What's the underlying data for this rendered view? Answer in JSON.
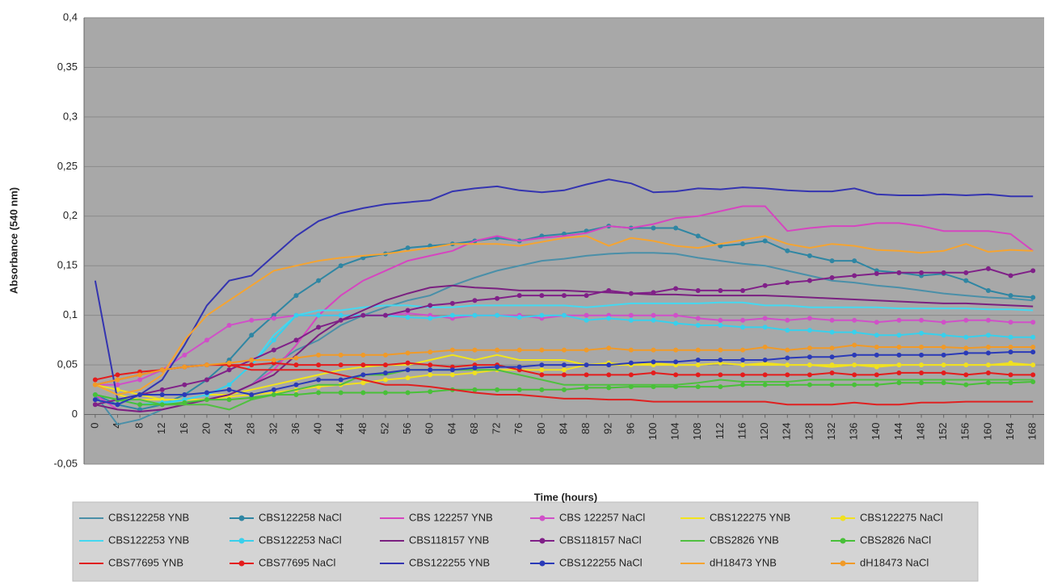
{
  "chart_data": {
    "type": "line",
    "xlabel": "Time (hours)",
    "ylabel": "Absorbance (540 nm)",
    "x": [
      0,
      4,
      8,
      12,
      16,
      20,
      24,
      28,
      32,
      36,
      40,
      44,
      48,
      52,
      56,
      60,
      64,
      68,
      72,
      76,
      80,
      84,
      88,
      92,
      96,
      100,
      104,
      108,
      112,
      116,
      120,
      124,
      128,
      132,
      136,
      140,
      144,
      148,
      152,
      156,
      160,
      164,
      168
    ],
    "xlim": [
      -2,
      170
    ],
    "xticks": [
      0,
      4,
      8,
      12,
      16,
      20,
      24,
      28,
      32,
      36,
      40,
      44,
      48,
      52,
      56,
      60,
      64,
      68,
      72,
      76,
      80,
      84,
      88,
      92,
      96,
      100,
      104,
      108,
      112,
      116,
      120,
      124,
      128,
      132,
      136,
      140,
      144,
      148,
      152,
      156,
      160,
      164,
      168
    ],
    "ylim": [
      -0.05,
      0.4
    ],
    "yticks": [
      {
        "value": -0.05,
        "label": "-0,05"
      },
      0,
      {
        "value": 0.05,
        "label": "0,05"
      },
      {
        "value": 0.1,
        "label": "0,1"
      },
      {
        "value": 0.15,
        "label": "0,15"
      },
      {
        "value": 0.2,
        "label": "0,2"
      },
      {
        "value": 0.25,
        "label": "0,25"
      },
      {
        "value": 0.3,
        "label": "0,3"
      },
      {
        "value": 0.35,
        "label": "0,35"
      },
      {
        "value": 0.4,
        "label": "0,4"
      }
    ],
    "grid": true,
    "series": [
      {
        "name": "CBS122258 YNB",
        "color": "#4a8fa8",
        "marker": false,
        "values": [
          0.02,
          -0.01,
          -0.005,
          0.005,
          0.01,
          0.015,
          0.02,
          0.03,
          0.05,
          0.065,
          0.075,
          0.09,
          0.1,
          0.108,
          0.115,
          0.12,
          0.13,
          0.138,
          0.145,
          0.15,
          0.155,
          0.157,
          0.16,
          0.162,
          0.163,
          0.163,
          0.162,
          0.158,
          0.155,
          0.152,
          0.15,
          0.145,
          0.14,
          0.135,
          0.133,
          0.13,
          0.128,
          0.125,
          0.122,
          0.12,
          0.118,
          0.117,
          0.115
        ]
      },
      {
        "name": "CBS122258 NaCl",
        "color": "#2f86a3",
        "marker": true,
        "values": [
          0.02,
          0.01,
          0.005,
          0.01,
          0.02,
          0.035,
          0.055,
          0.08,
          0.1,
          0.12,
          0.135,
          0.15,
          0.158,
          0.162,
          0.168,
          0.17,
          0.172,
          0.175,
          0.178,
          0.175,
          0.18,
          0.182,
          0.185,
          0.19,
          0.188,
          0.188,
          0.188,
          0.18,
          0.17,
          0.172,
          0.175,
          0.165,
          0.16,
          0.155,
          0.155,
          0.145,
          0.143,
          0.14,
          0.142,
          0.135,
          0.125,
          0.12,
          0.118
        ]
      },
      {
        "name": "CBS 122257 YNB",
        "color": "#d645c0",
        "marker": false,
        "values": [
          0.02,
          0.005,
          0.003,
          0.005,
          0.01,
          0.015,
          0.02,
          0.03,
          0.045,
          0.07,
          0.1,
          0.12,
          0.135,
          0.145,
          0.155,
          0.16,
          0.165,
          0.175,
          0.18,
          0.175,
          0.178,
          0.18,
          0.183,
          0.19,
          0.188,
          0.192,
          0.198,
          0.2,
          0.205,
          0.21,
          0.21,
          0.185,
          0.188,
          0.19,
          0.19,
          0.193,
          0.193,
          0.19,
          0.185,
          0.185,
          0.185,
          0.182,
          0.165
        ]
      },
      {
        "name": "CBS 122257 NaCl",
        "color": "#d050c8",
        "marker": true,
        "values": [
          0.03,
          0.03,
          0.035,
          0.045,
          0.06,
          0.075,
          0.09,
          0.095,
          0.097,
          0.1,
          0.1,
          0.1,
          0.1,
          0.1,
          0.102,
          0.1,
          0.097,
          0.1,
          0.1,
          0.1,
          0.097,
          0.1,
          0.1,
          0.1,
          0.1,
          0.1,
          0.1,
          0.097,
          0.095,
          0.095,
          0.097,
          0.095,
          0.097,
          0.095,
          0.095,
          0.093,
          0.095,
          0.095,
          0.093,
          0.095,
          0.095,
          0.093,
          0.093
        ]
      },
      {
        "name": "CBS122275 YNB",
        "color": "#f2e41c",
        "marker": false,
        "values": [
          0.03,
          0.02,
          0.015,
          0.015,
          0.015,
          0.02,
          0.02,
          0.025,
          0.03,
          0.035,
          0.04,
          0.045,
          0.048,
          0.05,
          0.05,
          0.055,
          0.06,
          0.055,
          0.06,
          0.055,
          0.055,
          0.055,
          0.05,
          0.05,
          0.05,
          0.052,
          0.05,
          0.05,
          0.052,
          0.05,
          0.05,
          0.05,
          0.05,
          0.048,
          0.05,
          0.05,
          0.05,
          0.05,
          0.05,
          0.05,
          0.05,
          0.05,
          0.05
        ]
      },
      {
        "name": "CBS122275 NaCl",
        "color": "#f0e020",
        "marker": true,
        "values": [
          0.03,
          0.025,
          0.02,
          0.015,
          0.015,
          0.015,
          0.018,
          0.02,
          0.022,
          0.025,
          0.028,
          0.03,
          0.032,
          0.035,
          0.037,
          0.04,
          0.04,
          0.042,
          0.045,
          0.045,
          0.045,
          0.045,
          0.05,
          0.052,
          0.05,
          0.05,
          0.05,
          0.05,
          0.052,
          0.05,
          0.052,
          0.05,
          0.05,
          0.05,
          0.05,
          0.048,
          0.05,
          0.05,
          0.05,
          0.05,
          0.05,
          0.052,
          0.05
        ]
      },
      {
        "name": "CBS122253 YNB",
        "color": "#44d8f0",
        "marker": false,
        "values": [
          0.02,
          0.015,
          0.01,
          0.01,
          0.015,
          0.02,
          0.03,
          0.05,
          0.08,
          0.1,
          0.105,
          0.105,
          0.108,
          0.11,
          0.11,
          0.108,
          0.108,
          0.11,
          0.11,
          0.11,
          0.11,
          0.11,
          0.108,
          0.11,
          0.112,
          0.112,
          0.112,
          0.112,
          0.113,
          0.113,
          0.11,
          0.11,
          0.108,
          0.108,
          0.108,
          0.108,
          0.107,
          0.107,
          0.107,
          0.107,
          0.106,
          0.106,
          0.105
        ]
      },
      {
        "name": "CBS122253 NaCl",
        "color": "#38d0ec",
        "marker": true,
        "values": [
          0.02,
          0.015,
          0.01,
          0.012,
          0.015,
          0.02,
          0.03,
          0.05,
          0.075,
          0.1,
          0.1,
          0.1,
          0.1,
          0.1,
          0.098,
          0.097,
          0.1,
          0.1,
          0.1,
          0.098,
          0.1,
          0.1,
          0.095,
          0.097,
          0.095,
          0.095,
          0.092,
          0.09,
          0.09,
          0.088,
          0.088,
          0.085,
          0.085,
          0.083,
          0.083,
          0.08,
          0.08,
          0.082,
          0.08,
          0.078,
          0.08,
          0.078,
          0.078
        ]
      },
      {
        "name": "CBS118157 YNB",
        "color": "#7a2080",
        "marker": false,
        "values": [
          0.01,
          0.005,
          0.003,
          0.005,
          0.01,
          0.015,
          0.02,
          0.03,
          0.04,
          0.06,
          0.08,
          0.095,
          0.105,
          0.115,
          0.122,
          0.128,
          0.13,
          0.128,
          0.127,
          0.125,
          0.125,
          0.125,
          0.124,
          0.123,
          0.122,
          0.121,
          0.121,
          0.12,
          0.12,
          0.12,
          0.12,
          0.119,
          0.118,
          0.117,
          0.116,
          0.115,
          0.114,
          0.113,
          0.112,
          0.112,
          0.111,
          0.11,
          0.109
        ]
      },
      {
        "name": "CBS118157 NaCl",
        "color": "#802088",
        "marker": true,
        "values": [
          0.01,
          0.015,
          0.02,
          0.025,
          0.03,
          0.035,
          0.045,
          0.055,
          0.065,
          0.075,
          0.088,
          0.095,
          0.1,
          0.1,
          0.105,
          0.11,
          0.112,
          0.115,
          0.117,
          0.12,
          0.12,
          0.12,
          0.12,
          0.125,
          0.122,
          0.123,
          0.127,
          0.125,
          0.125,
          0.125,
          0.13,
          0.133,
          0.135,
          0.138,
          0.14,
          0.142,
          0.143,
          0.143,
          0.143,
          0.143,
          0.147,
          0.14,
          0.145
        ]
      },
      {
        "name": "CBS2826 YNB",
        "color": "#50c040",
        "marker": false,
        "values": [
          0.02,
          0.015,
          0.015,
          0.01,
          0.01,
          0.01,
          0.005,
          0.015,
          0.02,
          0.025,
          0.03,
          0.03,
          0.04,
          0.04,
          0.045,
          0.045,
          0.045,
          0.045,
          0.045,
          0.04,
          0.035,
          0.03,
          0.03,
          0.03,
          0.03,
          0.03,
          0.03,
          0.032,
          0.035,
          0.033,
          0.033,
          0.033,
          0.035,
          0.035,
          0.035,
          0.035,
          0.035,
          0.035,
          0.035,
          0.035,
          0.035,
          0.035,
          0.035
        ]
      },
      {
        "name": "CBS2826 NaCl",
        "color": "#48c038",
        "marker": true,
        "values": [
          0.02,
          0.015,
          0.01,
          0.01,
          0.012,
          0.015,
          0.015,
          0.017,
          0.02,
          0.02,
          0.022,
          0.022,
          0.022,
          0.022,
          0.022,
          0.023,
          0.025,
          0.025,
          0.025,
          0.025,
          0.025,
          0.025,
          0.027,
          0.027,
          0.028,
          0.028,
          0.028,
          0.028,
          0.028,
          0.03,
          0.03,
          0.03,
          0.03,
          0.03,
          0.03,
          0.03,
          0.032,
          0.032,
          0.032,
          0.03,
          0.032,
          0.032,
          0.033
        ]
      },
      {
        "name": "CBS77695 YNB",
        "color": "#e02020",
        "marker": false,
        "values": [
          0.03,
          0.035,
          0.04,
          0.045,
          0.048,
          0.05,
          0.05,
          0.045,
          0.045,
          0.045,
          0.045,
          0.04,
          0.035,
          0.03,
          0.03,
          0.028,
          0.025,
          0.022,
          0.02,
          0.02,
          0.018,
          0.016,
          0.016,
          0.015,
          0.015,
          0.013,
          0.013,
          0.013,
          0.013,
          0.013,
          0.013,
          0.01,
          0.01,
          0.01,
          0.012,
          0.01,
          0.01,
          0.012,
          0.012,
          0.013,
          0.013,
          0.013,
          0.013
        ]
      },
      {
        "name": "CBS77695 NaCl",
        "color": "#e41c1c",
        "marker": true,
        "values": [
          0.035,
          0.04,
          0.043,
          0.045,
          0.048,
          0.05,
          0.05,
          0.05,
          0.052,
          0.05,
          0.05,
          0.05,
          0.05,
          0.05,
          0.052,
          0.05,
          0.048,
          0.05,
          0.05,
          0.045,
          0.04,
          0.04,
          0.04,
          0.04,
          0.04,
          0.042,
          0.04,
          0.04,
          0.04,
          0.04,
          0.04,
          0.04,
          0.04,
          0.042,
          0.04,
          0.04,
          0.042,
          0.042,
          0.042,
          0.04,
          0.042,
          0.04,
          0.04
        ]
      },
      {
        "name": "CBS122255 YNB",
        "color": "#3434b0",
        "marker": false,
        "values": [
          0.135,
          0.015,
          0.02,
          0.035,
          0.07,
          0.11,
          0.135,
          0.14,
          0.16,
          0.18,
          0.195,
          0.203,
          0.208,
          0.212,
          0.214,
          0.216,
          0.225,
          0.228,
          0.23,
          0.226,
          0.224,
          0.226,
          0.232,
          0.237,
          0.233,
          0.224,
          0.225,
          0.228,
          0.227,
          0.229,
          0.228,
          0.226,
          0.225,
          0.225,
          0.228,
          0.222,
          0.221,
          0.221,
          0.222,
          0.221,
          0.222,
          0.22,
          0.22
        ]
      },
      {
        "name": "CBS122255 NaCl",
        "color": "#2a3ab8",
        "marker": true,
        "values": [
          0.015,
          0.01,
          0.02,
          0.02,
          0.02,
          0.022,
          0.025,
          0.02,
          0.025,
          0.03,
          0.035,
          0.035,
          0.04,
          0.042,
          0.045,
          0.045,
          0.045,
          0.047,
          0.048,
          0.048,
          0.05,
          0.05,
          0.05,
          0.05,
          0.052,
          0.053,
          0.053,
          0.055,
          0.055,
          0.055,
          0.055,
          0.057,
          0.058,
          0.058,
          0.06,
          0.06,
          0.06,
          0.06,
          0.06,
          0.062,
          0.062,
          0.063,
          0.063
        ]
      },
      {
        "name": "dH18473 YNB",
        "color": "#f5a431",
        "marker": false,
        "values": [
          0.03,
          0.02,
          0.025,
          0.04,
          0.075,
          0.1,
          0.115,
          0.13,
          0.145,
          0.15,
          0.155,
          0.158,
          0.16,
          0.162,
          0.165,
          0.168,
          0.172,
          0.172,
          0.172,
          0.17,
          0.174,
          0.178,
          0.18,
          0.17,
          0.178,
          0.175,
          0.17,
          0.168,
          0.172,
          0.176,
          0.18,
          0.172,
          0.168,
          0.172,
          0.17,
          0.166,
          0.165,
          0.163,
          0.165,
          0.172,
          0.164,
          0.166,
          0.165
        ]
      },
      {
        "name": "dH18473 NaCl",
        "color": "#f09a28",
        "marker": true,
        "values": [
          0.03,
          0.035,
          0.04,
          0.045,
          0.048,
          0.05,
          0.052,
          0.055,
          0.055,
          0.057,
          0.06,
          0.06,
          0.06,
          0.06,
          0.062,
          0.063,
          0.065,
          0.065,
          0.065,
          0.065,
          0.065,
          0.065,
          0.065,
          0.067,
          0.065,
          0.065,
          0.065,
          0.065,
          0.065,
          0.065,
          0.068,
          0.065,
          0.067,
          0.067,
          0.07,
          0.068,
          0.068,
          0.068,
          0.068,
          0.067,
          0.068,
          0.068,
          0.068
        ]
      }
    ]
  }
}
